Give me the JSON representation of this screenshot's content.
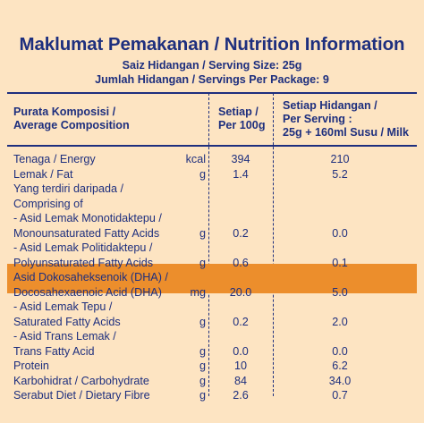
{
  "title": "Maklumat Pemakanan / Nutrition Information",
  "serving_size": "Saiz Hidangan / Serving Size: 25g",
  "servings_per_package": "Jumlah Hidangan / Servings Per Package: 9",
  "header": {
    "composition": [
      "Purata Komposisi /",
      "Average Composition"
    ],
    "per_100g": [
      "Setiap /",
      "Per 100g"
    ],
    "per_serving": [
      "Setiap Hidangan /",
      "Per Serving :",
      "25g + 160ml Susu / Milk"
    ]
  },
  "highlight_color": "#ec8e2c",
  "text_color": "#1e2f7e",
  "background_color": "#fde4c2",
  "rows": [
    {
      "label": "Tenaga / Energy",
      "unit": "kcal",
      "per100": "394",
      "serving": "210"
    },
    {
      "label": "Lemak / Fat",
      "unit": "g",
      "per100": "1.4",
      "serving": "5.2"
    },
    {
      "label": "Yang terdiri daripada /",
      "unit": "",
      "per100": "",
      "serving": ""
    },
    {
      "label": "Comprising of",
      "unit": "",
      "per100": "",
      "serving": ""
    },
    {
      "label": "- Asid Lemak Monotidaktepu /",
      "unit": "",
      "per100": "",
      "serving": ""
    },
    {
      "label": "Monounsaturated Fatty Acids",
      "unit": "g",
      "per100": "0.2",
      "serving": "0.0"
    },
    {
      "label": "- Asid Lemak Politidaktepu /",
      "unit": "",
      "per100": "",
      "serving": ""
    },
    {
      "label": "Polyunsaturated Fatty Acids",
      "unit": "g",
      "per100": "0.6",
      "serving": "0.1"
    },
    {
      "label": "Asid Dokosaheksenoik (DHA) /",
      "unit": "",
      "per100": "",
      "serving": ""
    },
    {
      "label": "Docosahexaenoic Acid (DHA)",
      "unit": "mg",
      "per100": "20.0",
      "serving": "5.0"
    },
    {
      "label": "- Asid Lemak Tepu /",
      "unit": "",
      "per100": "",
      "serving": ""
    },
    {
      "label": "Saturated Fatty Acids",
      "unit": "g",
      "per100": "0.2",
      "serving": "2.0"
    },
    {
      "label": "- Asid Trans Lemak /",
      "unit": "",
      "per100": "",
      "serving": ""
    },
    {
      "label": "Trans Fatty Acid",
      "unit": "g",
      "per100": "0.0",
      "serving": "0.0"
    },
    {
      "label": "Protein",
      "unit": "g",
      "per100": "10",
      "serving": "6.2"
    },
    {
      "label": "Karbohidrat / Carbohydrate",
      "unit": "g",
      "per100": "84",
      "serving": "34.0"
    },
    {
      "label": "Serabut Diet / Dietary Fibre",
      "unit": "g",
      "per100": "2.6",
      "serving": "0.7"
    }
  ]
}
